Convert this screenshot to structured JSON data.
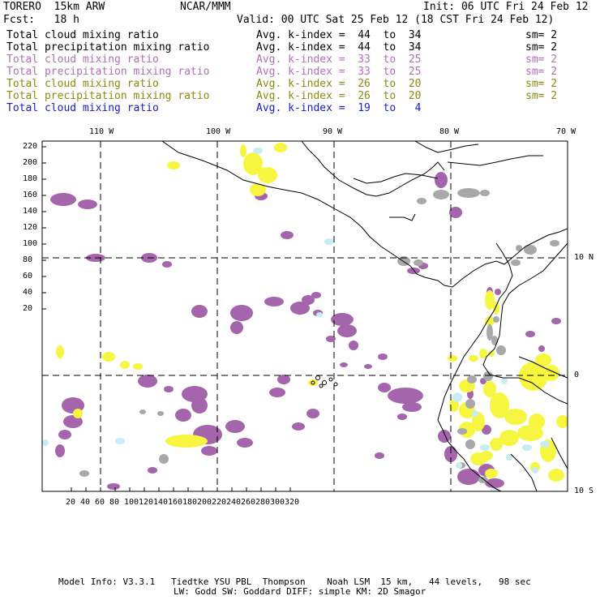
{
  "header": {
    "model": "TORERO  15km ARW",
    "org": "NCAR/MMM",
    "init": "Init: 06 UTC Fri 24 Feb 12",
    "fcst": "Fcst:   18 h",
    "valid": "Valid: 00 UTC Sat 25 Feb 12 (18 CST Fri 24 Feb 12)"
  },
  "legend": [
    {
      "field": "Total cloud mixing ratio",
      "kindex": "Avg. k-index =  44  to  34",
      "sm": "sm= 2",
      "color": "#000000"
    },
    {
      "field": "Total precipitation mixing ratio",
      "kindex": "Avg. k-index =  44  to  34",
      "sm": "sm= 2",
      "color": "#000000"
    },
    {
      "field": "Total cloud mixing ratio",
      "kindex": "Avg. k-index =  33  to  25",
      "sm": "sm= 2",
      "color": "#b070b8"
    },
    {
      "field": "Total precipitation mixing ratio",
      "kindex": "Avg. k-index =  33  to  25",
      "sm": "sm= 2",
      "color": "#b070b8"
    },
    {
      "field": "Total cloud mixing ratio",
      "kindex": "Avg. k-index =  26  to  20",
      "sm": "sm= 2",
      "color": "#8a8a10"
    },
    {
      "field": "Total precipitation mixing ratio",
      "kindex": "Avg. k-index =  26  to  20",
      "sm": "sm= 2",
      "color": "#8a8a10"
    },
    {
      "field": "Total cloud mixing ratio",
      "kindex": "Avg. k-index =  19  to   4",
      "sm": "",
      "color": "#1a1ad0"
    }
  ],
  "map": {
    "lon_labels": [
      "110 W",
      "100 W",
      "90 W",
      "80 W",
      "70 W"
    ],
    "lat_labels": [
      "10 N",
      "0",
      "10 S"
    ],
    "y_ticks": [
      "220",
      "200",
      "180",
      "160",
      "140",
      "120",
      "100",
      "80",
      "60",
      "40",
      "20"
    ],
    "x_ticks": [
      "20",
      "40",
      "60",
      "80",
      "100",
      "120",
      "140",
      "160",
      "180",
      "200",
      "220",
      "240",
      "260",
      "280",
      "300",
      "320"
    ],
    "colors": {
      "purple": "#a465ad",
      "yellow": "#f6f640",
      "gray": "#a8a8a8",
      "cyan": "#c8ecf4"
    }
  },
  "footer": {
    "line1": "Model Info: V3.3.1   Tiedtke YSU PBL  Thompson    Noah LSM  15 km,   44 levels,   98 sec",
    "line2": "LW: Godd SW: Goddard DIFF: simple KM: 2D Smagor"
  }
}
